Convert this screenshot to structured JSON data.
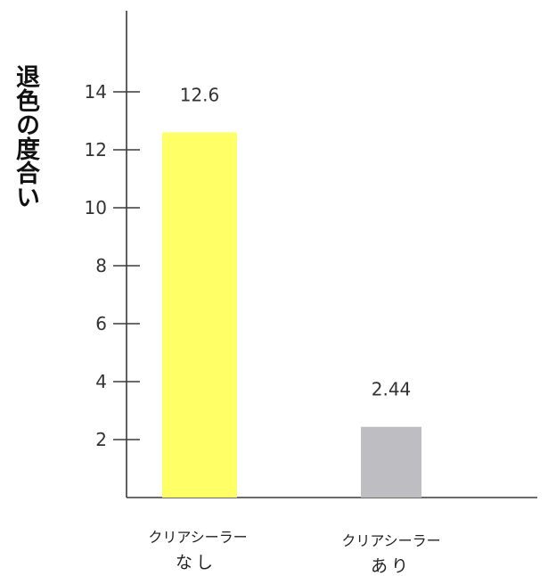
{
  "chart_data": {
    "type": "bar",
    "ylabel": "退色の度合い",
    "xlabel": "",
    "title": "",
    "categories": [
      {
        "line1": "クリアシーラー",
        "line2": "なし"
      },
      {
        "line1": "クリアシーラー",
        "line2": "あり"
      }
    ],
    "values": [
      12.6,
      2.44
    ],
    "value_labels": [
      "12.6",
      "2.44"
    ],
    "colors": [
      "#FFFF66",
      "#BEBEC2"
    ],
    "yticks": [
      2,
      4,
      6,
      8,
      10,
      12,
      14
    ],
    "ylim": [
      0,
      15.5
    ],
    "grid": false
  }
}
